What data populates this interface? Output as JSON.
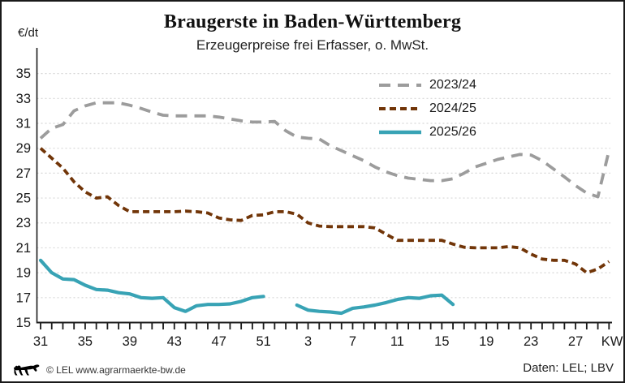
{
  "header": {
    "title": "Braugerste in Baden-Württemberg",
    "subtitle": "Erzeugerpreise frei Erfasser, o. MwSt."
  },
  "y_axis": {
    "unit_label": "€/dt",
    "min": 15,
    "max": 35,
    "step": 2
  },
  "x_axis": {
    "label": "KW",
    "labeled_weeks": [
      31,
      35,
      39,
      43,
      47,
      51,
      3,
      7,
      11,
      15,
      19,
      23,
      27
    ]
  },
  "colors": {
    "series_2023_24": "#9c9c9c",
    "series_2024_25": "#713508",
    "series_2025_26": "#38a3b5",
    "grid": "#d6d6d6",
    "axis": "#1a1a1a"
  },
  "chart_data": {
    "type": "line",
    "title": "Braugerste in Baden-Württemberg",
    "subtitle": "Erzeugerpreise frei Erfasser, o. MwSt.",
    "xlabel": "KW",
    "ylabel": "€/dt",
    "ylim": [
      15,
      35
    ],
    "y_tick_step": 2,
    "grid": true,
    "legend_position": "top-right",
    "x": [
      31,
      32,
      33,
      34,
      35,
      36,
      37,
      38,
      39,
      40,
      41,
      42,
      43,
      44,
      45,
      46,
      47,
      48,
      49,
      50,
      51,
      52,
      1,
      2,
      3,
      4,
      5,
      6,
      7,
      8,
      9,
      10,
      11,
      12,
      13,
      14,
      15,
      16,
      17,
      18,
      19,
      20,
      21,
      22,
      23,
      24,
      25,
      26,
      27,
      28,
      29,
      30
    ],
    "x_label_every": 4,
    "series": [
      {
        "name": "2023/24",
        "color": "#9c9c9c",
        "dash": "long",
        "values": [
          29.8,
          30.6,
          30.9,
          32.0,
          32.4,
          32.65,
          32.65,
          32.65,
          32.45,
          32.2,
          31.9,
          31.65,
          31.6,
          31.6,
          31.6,
          31.6,
          31.5,
          31.35,
          31.2,
          31.1,
          31.1,
          31.15,
          30.4,
          29.9,
          29.8,
          29.75,
          29.2,
          28.8,
          28.4,
          28.0,
          27.5,
          27.1,
          26.8,
          26.6,
          26.5,
          26.4,
          26.4,
          26.55,
          27.0,
          27.5,
          27.8,
          28.1,
          28.3,
          28.5,
          28.45,
          28.0,
          27.35,
          26.7,
          26.0,
          25.4,
          25.1,
          28.8
        ]
      },
      {
        "name": "2024/25",
        "color": "#713508",
        "dash": "short",
        "values": [
          29.0,
          28.2,
          27.4,
          26.3,
          25.5,
          25.0,
          25.1,
          24.4,
          23.9,
          23.9,
          23.9,
          23.9,
          23.9,
          23.95,
          23.9,
          23.8,
          23.4,
          23.25,
          23.2,
          23.6,
          23.65,
          23.9,
          23.9,
          23.7,
          23.0,
          22.75,
          22.7,
          22.7,
          22.7,
          22.7,
          22.6,
          22.1,
          21.6,
          21.6,
          21.6,
          21.6,
          21.6,
          21.3,
          21.05,
          21.0,
          21.0,
          21.0,
          21.1,
          21.0,
          20.5,
          20.1,
          20.0,
          20.0,
          19.7,
          19.0,
          19.3,
          19.9
        ]
      },
      {
        "name": "2025/26",
        "color": "#38a3b5",
        "dash": "solid",
        "values": [
          20.0,
          19.0,
          18.5,
          18.45,
          18.0,
          17.65,
          17.6,
          17.4,
          17.3,
          17.0,
          16.95,
          17.0,
          16.2,
          15.9,
          16.35,
          16.45,
          16.45,
          16.5,
          16.7,
          17.0,
          17.1,
          null,
          null,
          16.4,
          16.0,
          15.9,
          15.85,
          15.75,
          16.15,
          16.25,
          16.4,
          16.6,
          16.85,
          17.0,
          16.95,
          17.15,
          17.2,
          16.45,
          null,
          null,
          null,
          null,
          null,
          null,
          null,
          null,
          null,
          null,
          null,
          null,
          null,
          null
        ]
      }
    ]
  },
  "footer": {
    "left_text": "© LEL www.agrarmaerkte-bw.de",
    "right_text": "Daten: LEL; LBV",
    "logo": "bw-lion"
  }
}
